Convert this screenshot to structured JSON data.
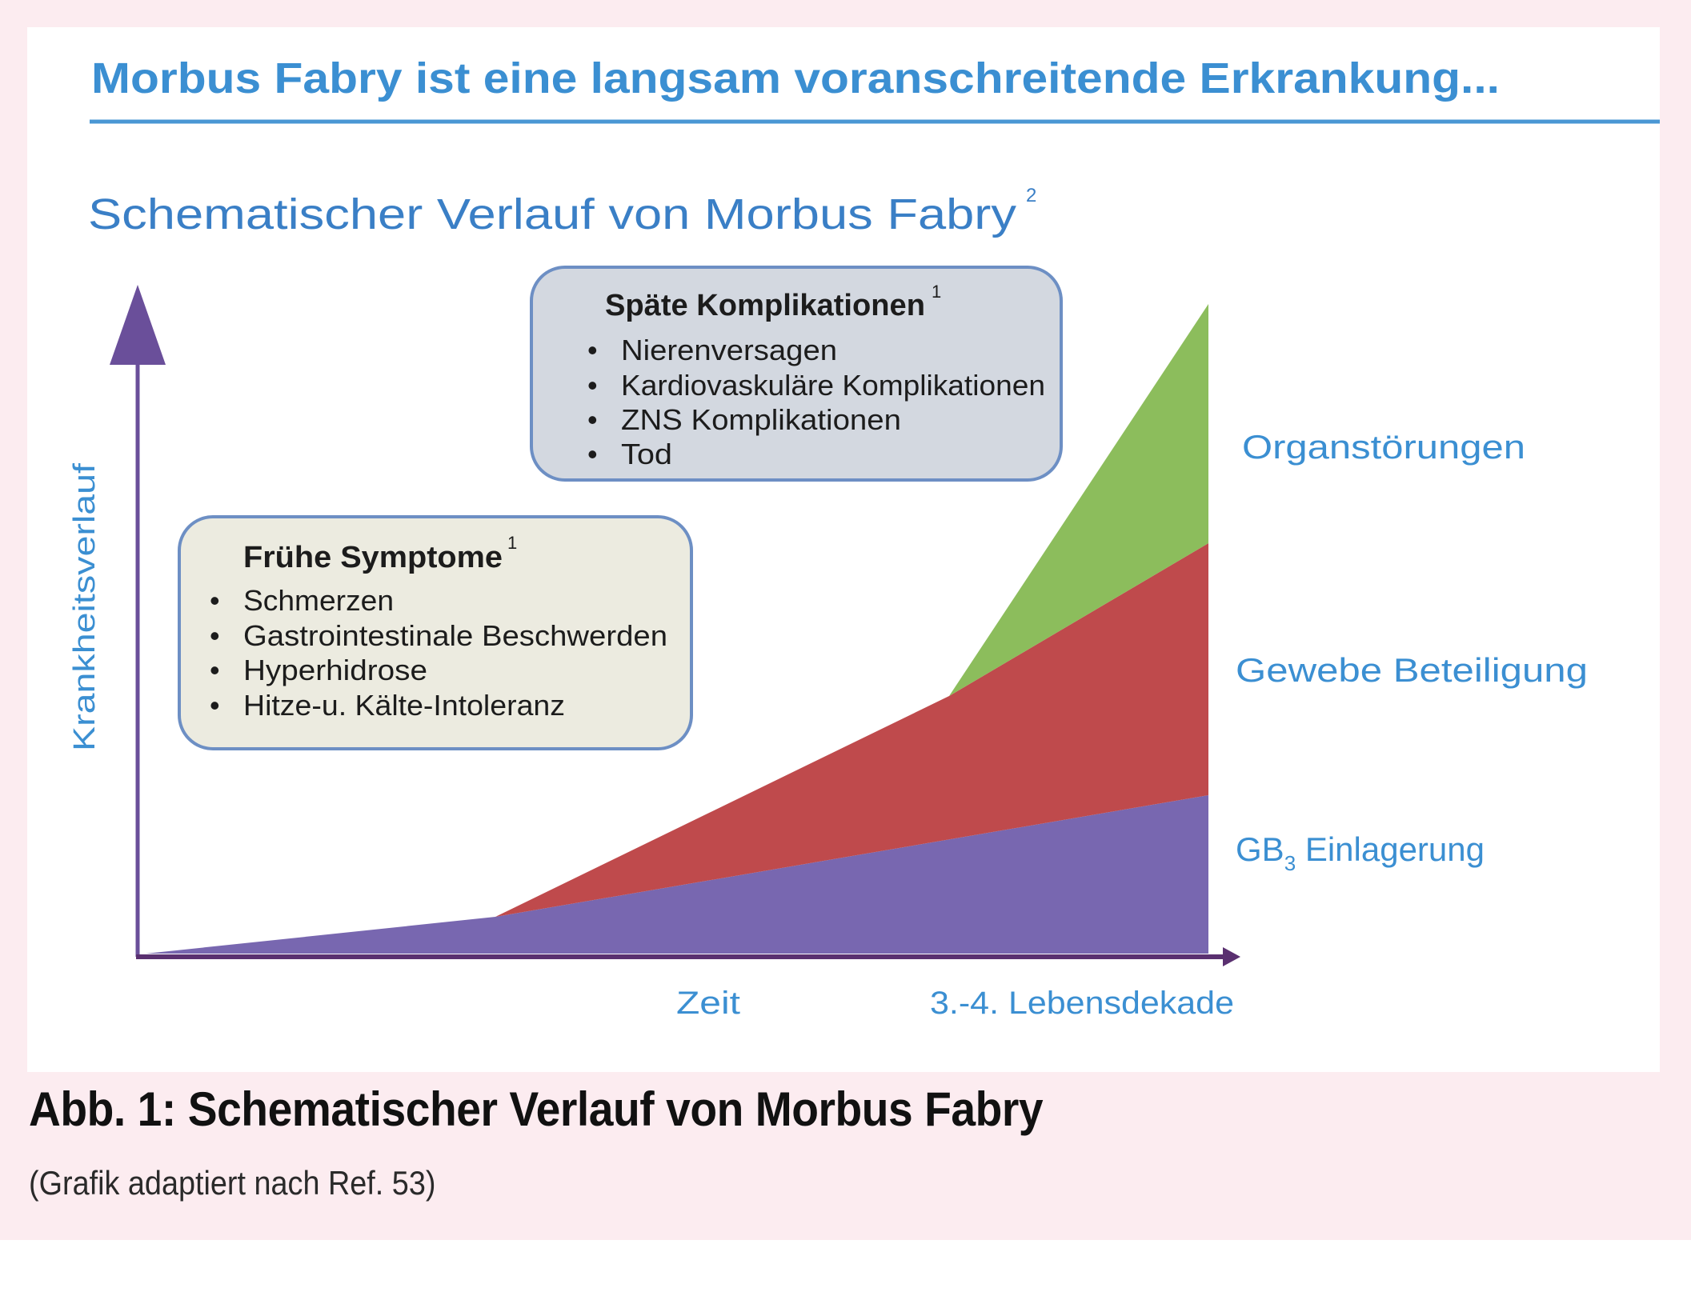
{
  "headline": "Morbus Fabry ist eine langsam voranschreitende Erkrankung...",
  "subtitle": "Schematischer Verlauf von Morbus Fabry",
  "subtitle_ref": "2",
  "axes": {
    "y_label": "Krankheitsverlauf",
    "x_label_left": "Zeit",
    "x_label_right": "3.-4. Lebensdekade"
  },
  "late_box": {
    "title": "Späte Komplikationen",
    "ref": "1",
    "items": [
      "Nierenversagen",
      "Kardiovaskuläre Komplikationen",
      "ZNS Komplikationen",
      "Tod"
    ]
  },
  "early_box": {
    "title": "Frühe Symptome",
    "ref": "1",
    "items": [
      "Schmerzen",
      "Gastrointestinale Beschwerden",
      "Hyperhidrose",
      "Hitze-u. Kälte-Intoleranz"
    ]
  },
  "layers": [
    {
      "label": "Organstörungen",
      "color": "#8cbd5c"
    },
    {
      "label": "Gewebe  Beteiligung",
      "color": "#bf4a4c"
    },
    {
      "label_main": "GB",
      "label_sub": "3",
      "label_rest": " Einlagerung",
      "color": "#7867b0"
    }
  ],
  "colors": {
    "frame": "#fcecf0",
    "blue_text": "#3b8fd2",
    "axis": "#6a4f9a",
    "axis_x": "#5a3070",
    "late_box_fill": "#d3d8e0",
    "early_box_fill": "#ecebe0",
    "box_border": "#6d8fc4"
  },
  "caption": {
    "title": "Abb. 1: Schematischer Verlauf von Morbus Fabry",
    "source": "(Grafik adaptiert nach Ref. 53)"
  }
}
